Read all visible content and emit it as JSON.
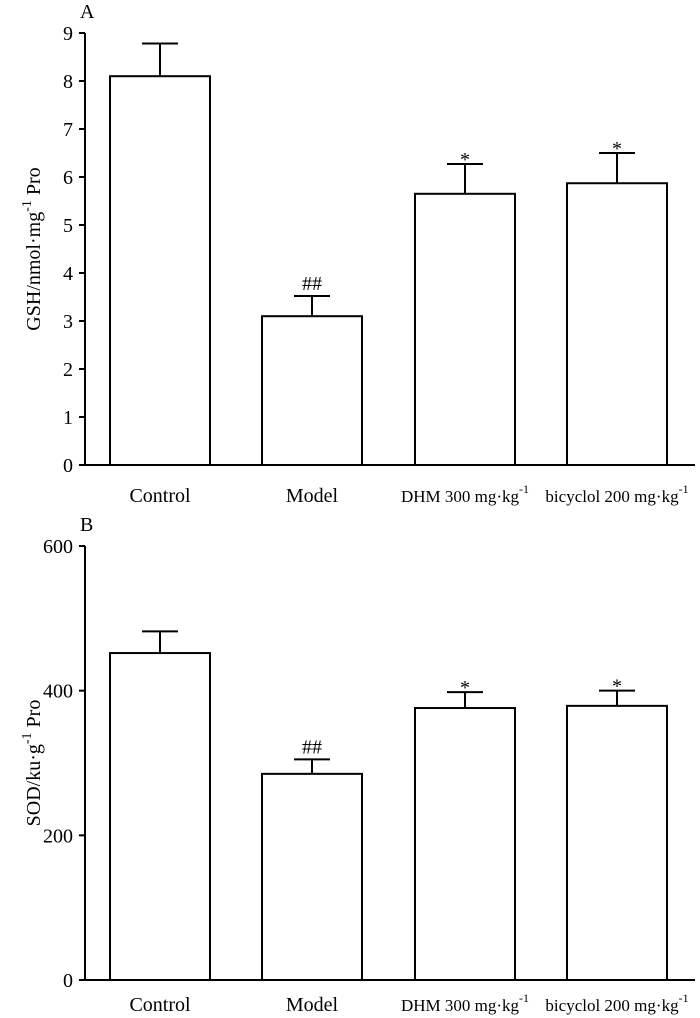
{
  "chart_data": [
    {
      "type": "bar",
      "panel_label": "A",
      "categories": [
        "Control",
        "Model",
        "DHM 300 mg·kg",
        "bicyclol 200 mg·kg"
      ],
      "category_superscripts": [
        "",
        "",
        "-1",
        "-1"
      ],
      "values": [
        8.1,
        3.1,
        5.65,
        5.87
      ],
      "errors": [
        0.68,
        0.42,
        0.62,
        0.63
      ],
      "annotations": [
        "",
        "##",
        "*",
        "*"
      ],
      "ylabel": "GSH/nmol·mg",
      "ylabel_sup": "-1",
      "ylabel_suffix": "Pro",
      "ylim": [
        0,
        9
      ],
      "yticks": [
        "0",
        "1",
        "2",
        "3",
        "4",
        "5",
        "6",
        "7",
        "8",
        "9"
      ],
      "grid": false,
      "legend": "none"
    },
    {
      "type": "bar",
      "panel_label": "B",
      "categories": [
        "Control",
        "Model",
        "DHM 300 mg·kg",
        "bicyclol 200 mg·kg"
      ],
      "category_superscripts": [
        "",
        "",
        "-1",
        "-1"
      ],
      "values": [
        452,
        285,
        376,
        379
      ],
      "errors": [
        30,
        20,
        22,
        21
      ],
      "annotations": [
        "",
        "##",
        "*",
        "*"
      ],
      "ylabel": "SOD/ku·g",
      "ylabel_sup": "-1",
      "ylabel_suffix": "Pro",
      "ylim": [
        0,
        600
      ],
      "yticks": [
        "0",
        "200",
        "400",
        "600"
      ],
      "grid": false,
      "legend": "none"
    }
  ]
}
